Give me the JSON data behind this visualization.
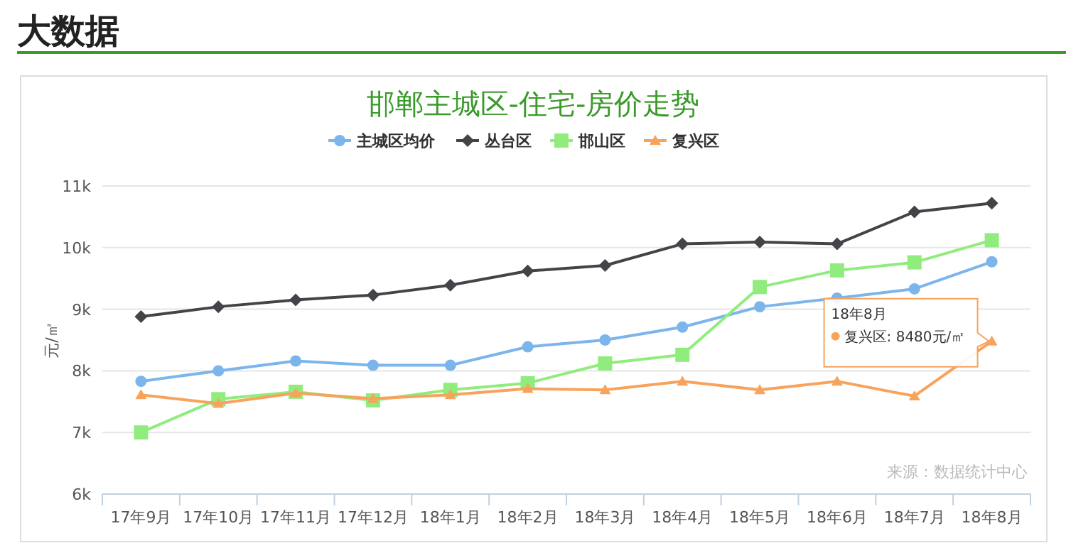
{
  "chart_data": {
    "type": "line",
    "title": "邯郸主城区-住宅-房价走势",
    "ylabel": "元/㎡",
    "categories": [
      "17年9月",
      "17年10月",
      "17年11月",
      "17年12月",
      "18年1月",
      "18年2月",
      "18年3月",
      "18年4月",
      "18年5月",
      "18年6月",
      "18年7月",
      "18年8月"
    ],
    "series": [
      {
        "name": "主城区均价",
        "color": "#7cb5ec",
        "marker": "circle",
        "values": [
          7830,
          8000,
          8160,
          8090,
          8090,
          8390,
          8500,
          8710,
          9040,
          9180,
          9330,
          9770
        ]
      },
      {
        "name": "丛台区",
        "color": "#434348",
        "marker": "diamond",
        "values": [
          8880,
          9040,
          9150,
          9230,
          9390,
          9620,
          9710,
          10060,
          10090,
          10060,
          10580,
          10720
        ]
      },
      {
        "name": "邯山区",
        "color": "#90ed7d",
        "marker": "square",
        "values": [
          7000,
          7540,
          7660,
          7520,
          7690,
          7800,
          8120,
          8260,
          9360,
          9630,
          9760,
          10120
        ]
      },
      {
        "name": "复兴区",
        "color": "#f7a35c",
        "marker": "triangle",
        "values": [
          7610,
          7470,
          7640,
          7550,
          7610,
          7710,
          7690,
          7830,
          7690,
          7830,
          7590,
          8480
        ]
      }
    ],
    "ylim": [
      6000,
      11000
    ],
    "yticks": [
      {
        "value": 6000,
        "label": "6k"
      },
      {
        "value": 7000,
        "label": "7k"
      },
      {
        "value": 8000,
        "label": "8k"
      },
      {
        "value": 9000,
        "label": "9k"
      },
      {
        "value": 10000,
        "label": "10k"
      },
      {
        "value": 11000,
        "label": "11k"
      }
    ],
    "grid": "y",
    "legend": "top",
    "line_style": "solid",
    "annotations": [
      "大数据",
      "18年8月",
      {
        "text": "复兴区: 8480元/㎡",
        "x": "18年8月",
        "y": 8480
      },
      "来源：数据统计中心"
    ]
  }
}
